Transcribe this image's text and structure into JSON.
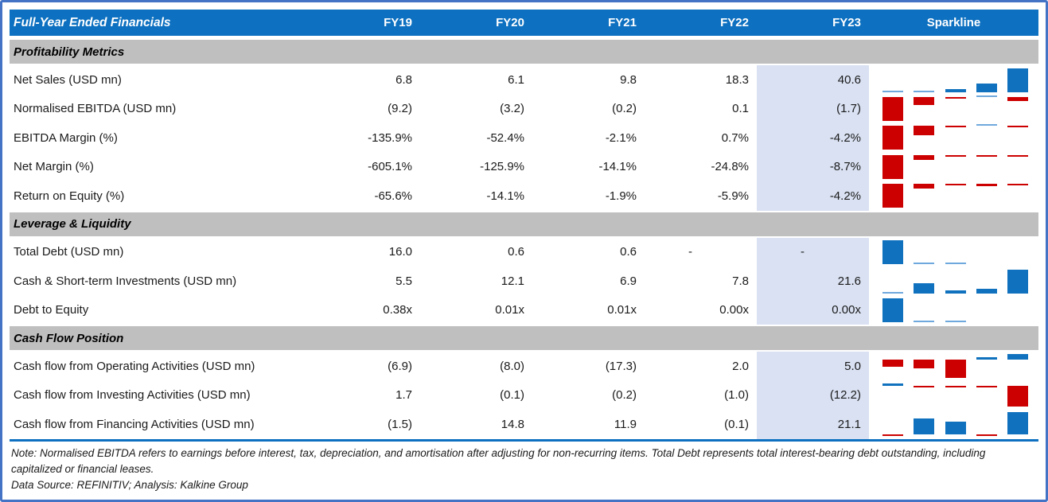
{
  "table": {
    "title": "Full-Year Ended Financials",
    "columns": [
      "FY19",
      "FY20",
      "FY21",
      "FY22",
      "FY23"
    ],
    "sparkline_label": "Sparkline",
    "highlight_column": "FY23",
    "sections": [
      {
        "label": "Profitability Metrics",
        "rows": [
          {
            "label": "Net Sales (USD mn)",
            "cells": [
              "6.8",
              "6.1",
              "9.8",
              "18.3",
              "40.6"
            ],
            "values": [
              6.8,
              6.1,
              9.8,
              18.3,
              40.6
            ]
          },
          {
            "label": "Normalised EBITDA (USD mn)",
            "cells": [
              "(9.2)",
              "(3.2)",
              "(0.2)",
              "0.1",
              "(1.7)"
            ],
            "values": [
              -9.2,
              -3.2,
              -0.2,
              0.1,
              -1.7
            ]
          },
          {
            "label": "EBITDA Margin (%)",
            "cells": [
              "-135.9%",
              "-52.4%",
              "-2.1%",
              "0.7%",
              "-4.2%"
            ],
            "values": [
              -135.9,
              -52.4,
              -2.1,
              0.7,
              -4.2
            ]
          },
          {
            "label": "Net Margin (%)",
            "cells": [
              "-605.1%",
              "-125.9%",
              "-14.1%",
              "-24.8%",
              "-8.7%"
            ],
            "values": [
              -605.1,
              -125.9,
              -14.1,
              -24.8,
              -8.7
            ]
          },
          {
            "label": "Return on Equity (%)",
            "cells": [
              "-65.6%",
              "-14.1%",
              "-1.9%",
              "-5.9%",
              "-4.2%"
            ],
            "values": [
              -65.6,
              -14.1,
              -1.9,
              -5.9,
              -4.2
            ]
          }
        ]
      },
      {
        "label": "Leverage & Liquidity",
        "rows": [
          {
            "label": "Total Debt (USD mn)",
            "cells": [
              "16.0",
              "0.6",
              "0.6",
              "-",
              "-"
            ],
            "values": [
              16.0,
              0.6,
              0.6,
              null,
              null
            ]
          },
          {
            "label": "Cash & Short-term Investments (USD mn)",
            "cells": [
              "5.5",
              "12.1",
              "6.9",
              "7.8",
              "21.6"
            ],
            "values": [
              5.5,
              12.1,
              6.9,
              7.8,
              21.6
            ]
          },
          {
            "label": "Debt to Equity",
            "cells": [
              "0.38x",
              "0.01x",
              "0.01x",
              "0.00x",
              "0.00x"
            ],
            "values": [
              0.38,
              0.01,
              0.01,
              0,
              0
            ]
          }
        ]
      },
      {
        "label": "Cash Flow Position",
        "rows": [
          {
            "label": "Cash flow from Operating Activities (USD mn)",
            "cells": [
              "(6.9)",
              "(8.0)",
              "(17.3)",
              "2.0",
              "5.0"
            ],
            "values": [
              -6.9,
              -8.0,
              -17.3,
              2.0,
              5.0
            ]
          },
          {
            "label": "Cash flow from Investing Activities (USD mn)",
            "cells": [
              "1.7",
              "(0.1)",
              "(0.2)",
              "(1.0)",
              "(12.2)"
            ],
            "values": [
              1.7,
              -0.1,
              -0.2,
              -1.0,
              -12.2
            ]
          },
          {
            "label": "Cash flow from Financing Activities (USD mn)",
            "cells": [
              "(1.5)",
              "14.8",
              "11.9",
              "(0.1)",
              "21.1"
            ],
            "values": [
              -1.5,
              14.8,
              11.9,
              -0.1,
              21.1
            ]
          }
        ]
      }
    ]
  },
  "footer": {
    "note": "Note: Normalised EBITDA refers to earnings before interest, tax, depreciation, and amortisation after adjusting for non-recurring items. Total Debt represents total interest-bearing debt outstanding, including capitalized or financial leases.",
    "source": "Data Source: REFINITIV; Analysis: Kalkine Group"
  },
  "colors": {
    "border": "#4472C4",
    "header_bg": "#0D70C0",
    "header_text": "#FFFFFF",
    "section_bg": "#BFBFBF",
    "fy23_highlight": "#D9E1F2",
    "spark_positive": "#1072BE",
    "spark_positive_light": "#6FA8DC",
    "spark_negative": "#CC0000"
  },
  "chart_data": {
    "type": "table",
    "title": "Full-Year Ended Financials",
    "categories": [
      "FY19",
      "FY20",
      "FY21",
      "FY22",
      "FY23"
    ],
    "legend_position": "none",
    "grid": false,
    "sparkline_style": {
      "type": "bar",
      "positive_color": "#1072BE",
      "negative_color": "#CC0000",
      "highlighted_period": "FY23"
    },
    "series": [
      {
        "name": "Net Sales (USD mn)",
        "section": "Profitability Metrics",
        "values": [
          6.8,
          6.1,
          9.8,
          18.3,
          40.6
        ]
      },
      {
        "name": "Normalised EBITDA (USD mn)",
        "section": "Profitability Metrics",
        "values": [
          -9.2,
          -3.2,
          -0.2,
          0.1,
          -1.7
        ]
      },
      {
        "name": "EBITDA Margin (%)",
        "section": "Profitability Metrics",
        "values": [
          -135.9,
          -52.4,
          -2.1,
          0.7,
          -4.2
        ]
      },
      {
        "name": "Net Margin (%)",
        "section": "Profitability Metrics",
        "values": [
          -605.1,
          -125.9,
          -14.1,
          -24.8,
          -8.7
        ]
      },
      {
        "name": "Return on Equity (%)",
        "section": "Profitability Metrics",
        "values": [
          -65.6,
          -14.1,
          -1.9,
          -5.9,
          -4.2
        ]
      },
      {
        "name": "Total Debt (USD mn)",
        "section": "Leverage & Liquidity",
        "values": [
          16.0,
          0.6,
          0.6,
          null,
          null
        ]
      },
      {
        "name": "Cash & Short-term Investments (USD mn)",
        "section": "Leverage & Liquidity",
        "values": [
          5.5,
          12.1,
          6.9,
          7.8,
          21.6
        ]
      },
      {
        "name": "Debt to Equity",
        "section": "Leverage & Liquidity",
        "values": [
          0.38,
          0.01,
          0.01,
          0,
          0
        ]
      },
      {
        "name": "Cash flow from Operating Activities (USD mn)",
        "section": "Cash Flow Position",
        "values": [
          -6.9,
          -8.0,
          -17.3,
          2.0,
          5.0
        ]
      },
      {
        "name": "Cash flow from Investing Activities (USD mn)",
        "section": "Cash Flow Position",
        "values": [
          1.7,
          -0.1,
          -0.2,
          -1.0,
          -12.2
        ]
      },
      {
        "name": "Cash flow from Financing Activities (USD mn)",
        "section": "Cash Flow Position",
        "values": [
          -1.5,
          14.8,
          11.9,
          -0.1,
          21.1
        ]
      }
    ]
  }
}
